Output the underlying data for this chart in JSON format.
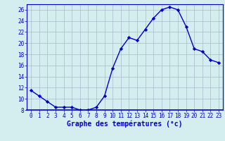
{
  "hours": [
    0,
    1,
    2,
    3,
    4,
    5,
    6,
    7,
    8,
    9,
    10,
    11,
    12,
    13,
    14,
    15,
    16,
    17,
    18,
    19,
    20,
    21,
    22,
    23
  ],
  "temperatures": [
    11.5,
    10.5,
    9.5,
    8.5,
    8.5,
    8.5,
    8.0,
    8.0,
    8.5,
    10.5,
    15.5,
    19.0,
    21.0,
    20.5,
    22.5,
    24.5,
    26.0,
    26.5,
    26.0,
    23.0,
    19.0,
    18.5,
    17.0,
    16.5
  ],
  "line_color": "#0000cc",
  "marker": "D",
  "marker_size": 2.2,
  "bg_color": "#d4eef0",
  "grid_color": "#aabbcc",
  "xlabel": "Graphe des températures (°c)",
  "tick_color": "#0000cc",
  "ylim": [
    8,
    27
  ],
  "yticks": [
    8,
    10,
    12,
    14,
    16,
    18,
    20,
    22,
    24,
    26
  ],
  "xlim": [
    -0.5,
    23.5
  ],
  "xticks": [
    0,
    1,
    2,
    3,
    4,
    5,
    6,
    7,
    8,
    9,
    10,
    11,
    12,
    13,
    14,
    15,
    16,
    17,
    18,
    19,
    20,
    21,
    22,
    23
  ],
  "xlabel_fontsize": 7.0,
  "tick_fontsize": 5.5,
  "linewidth": 1.0
}
